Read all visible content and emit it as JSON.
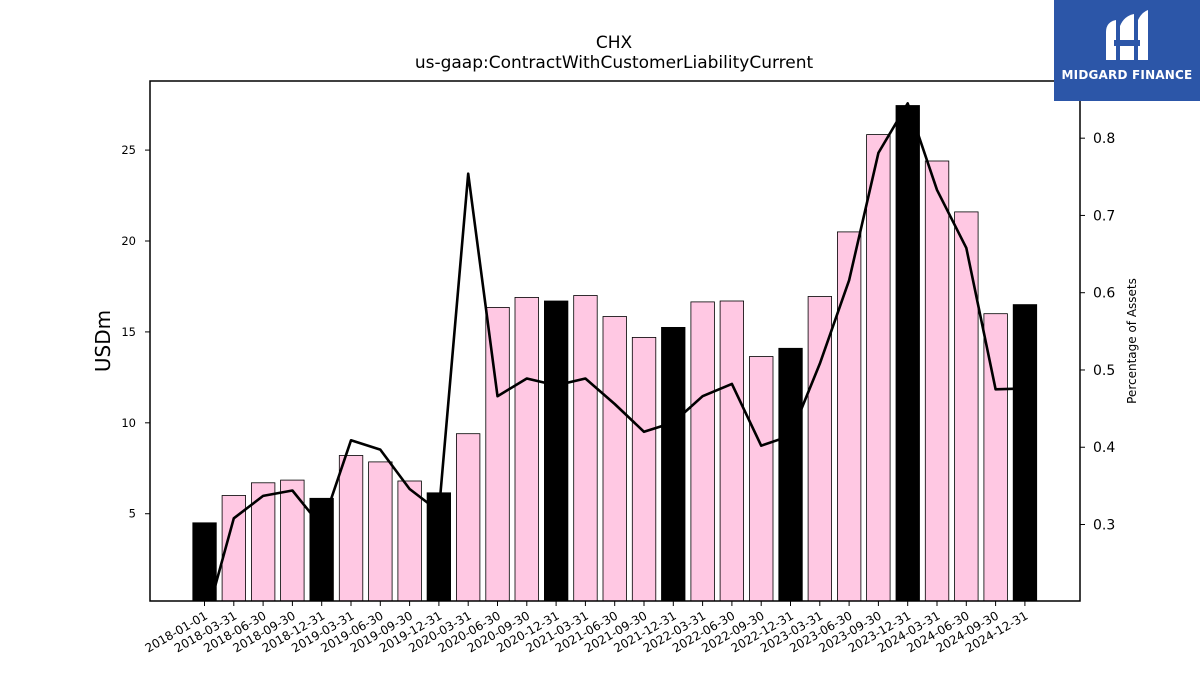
{
  "logo": {
    "text": "MIDGARD FINANCE",
    "icon": "mf-monogram-icon",
    "background": "#2c56a8"
  },
  "chart_data": {
    "type": "bar",
    "title": "CHX",
    "subtitle": "us-gaap:ContractWithCustomerLiabilityCurrent",
    "ylabel": "USDm",
    "y2label": "Percentage of Assets",
    "ylim": [
      0.2,
      28.8
    ],
    "y2lim": [
      0.201,
      0.874
    ],
    "yticks": [
      5,
      10,
      15,
      20,
      25
    ],
    "y2ticks": [
      0.3,
      0.4,
      0.5,
      0.6,
      0.7,
      0.8
    ],
    "colors": {
      "annual_bar": "#000000",
      "quarter_bar": "#ffc8e3",
      "line": "#000000"
    },
    "categories": [
      "2018-01-01",
      "2018-03-31",
      "2018-06-30",
      "2018-09-30",
      "2018-12-31",
      "2019-03-31",
      "2019-06-30",
      "2019-09-30",
      "2019-12-31",
      "2020-03-31",
      "2020-06-30",
      "2020-09-30",
      "2020-12-31",
      "2021-03-31",
      "2021-06-30",
      "2021-09-30",
      "2021-12-31",
      "2022-03-31",
      "2022-06-30",
      "2022-09-30",
      "2022-12-31",
      "2023-03-31",
      "2023-06-30",
      "2023-09-30",
      "2023-12-31",
      "2024-03-31",
      "2024-06-30",
      "2024-09-30",
      "2024-12-31"
    ],
    "bar_type": [
      "annual",
      "quarter",
      "quarter",
      "quarter",
      "annual",
      "quarter",
      "quarter",
      "quarter",
      "annual",
      "quarter",
      "quarter",
      "quarter",
      "annual",
      "quarter",
      "quarter",
      "quarter",
      "annual",
      "quarter",
      "quarter",
      "quarter",
      "annual",
      "quarter",
      "quarter",
      "quarter",
      "annual",
      "quarter",
      "quarter",
      "quarter",
      "annual"
    ],
    "series": [
      {
        "values": [
          4.5,
          6.0,
          6.7,
          6.85,
          5.85,
          8.2,
          7.85,
          6.8,
          6.15,
          9.4,
          16.35,
          16.9,
          16.7,
          17.0,
          15.85,
          14.7,
          15.25,
          16.65,
          16.7,
          13.65,
          14.1,
          16.95,
          20.5,
          25.85,
          27.45,
          24.4,
          21.6,
          16.0,
          16.5
        ]
      },
      {
        "axis": "right",
        "values": [
          0.17,
          0.308,
          0.337,
          0.344,
          0.297,
          0.409,
          0.397,
          0.346,
          0.317,
          0.754,
          0.466,
          0.489,
          0.48,
          0.489,
          0.456,
          0.42,
          0.432,
          0.466,
          0.482,
          0.402,
          0.415,
          0.508,
          0.616,
          0.781,
          0.845,
          0.733,
          0.658,
          0.475,
          0.476
        ]
      }
    ]
  }
}
